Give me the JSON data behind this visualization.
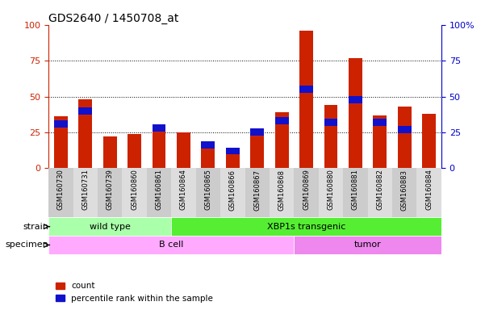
{
  "title": "GDS2640 / 1450708_at",
  "samples": [
    "GSM160730",
    "GSM160731",
    "GSM160739",
    "GSM160860",
    "GSM160861",
    "GSM160864",
    "GSM160865",
    "GSM160866",
    "GSM160867",
    "GSM160868",
    "GSM160869",
    "GSM160880",
    "GSM160881",
    "GSM160882",
    "GSM160883",
    "GSM160884"
  ],
  "count_values": [
    36,
    48,
    22,
    24,
    30,
    25,
    17,
    13,
    25,
    39,
    96,
    44,
    77,
    37,
    43,
    38
  ],
  "percentile_values": [
    31,
    40,
    0,
    0,
    28,
    0,
    16,
    12,
    25,
    33,
    55,
    32,
    48,
    32,
    27,
    0
  ],
  "ylim": [
    0,
    100
  ],
  "yticks": [
    0,
    25,
    50,
    75,
    100
  ],
  "bar_color_red": "#CC2200",
  "bar_color_blue": "#1111CC",
  "bar_width": 0.55,
  "pct_bar_height": 5,
  "strain_groups": [
    {
      "label": "wild type",
      "start": 0,
      "end": 4,
      "color": "#AAFFAA"
    },
    {
      "label": "XBP1s transgenic",
      "start": 5,
      "end": 15,
      "color": "#55EE33"
    }
  ],
  "specimen_groups": [
    {
      "label": "B cell",
      "start": 0,
      "end": 9,
      "color": "#FFAAFF"
    },
    {
      "label": "tumor",
      "start": 10,
      "end": 15,
      "color": "#EE88EE"
    }
  ],
  "legend_count_label": "count",
  "legend_pct_label": "percentile rank within the sample",
  "left_axis_color": "#CC2200",
  "right_axis_color": "#0000CC",
  "strain_label": "strain",
  "specimen_label": "specimen",
  "tick_bg_colors": [
    "#CCCCCC",
    "#DDDDDD"
  ],
  "fig_bg": "#FFFFFF"
}
